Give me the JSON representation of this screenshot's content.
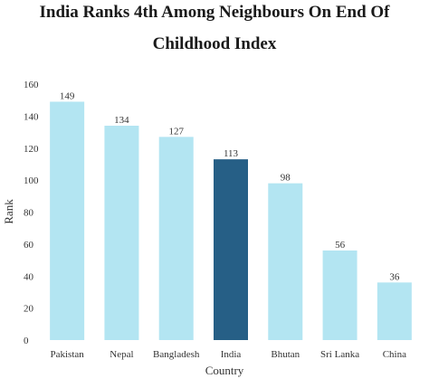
{
  "chart_data": {
    "type": "bar",
    "title_lines": [
      "India Ranks 4th Among Neighbours On End Of",
      "Childhood Index"
    ],
    "xlabel": "Country",
    "ylabel": "Rank",
    "categories": [
      "Pakistan",
      "Nepal",
      "Bangladesh",
      "India",
      "Bhutan",
      "Sri Lanka",
      "China"
    ],
    "values": [
      149,
      134,
      127,
      113,
      98,
      56,
      36
    ],
    "ylim": [
      0,
      160
    ],
    "yticks": [
      "0",
      "20",
      "40",
      "60",
      "80",
      "100",
      "120",
      "140",
      "160"
    ],
    "highlight_category": "India",
    "colors": {
      "default_bar": "#b3e5f2",
      "highlight_bar": "#265f86"
    },
    "grid": false,
    "legend": "none"
  }
}
